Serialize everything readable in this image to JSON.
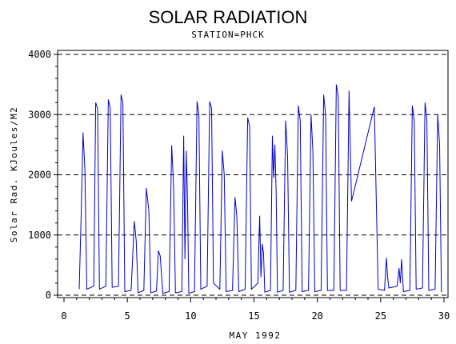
{
  "chart_data": {
    "type": "line",
    "title": "SOLAR RADIATION",
    "subtitle": "STATION=PHCK",
    "xlabel": "MAY 1992",
    "ylabel": "Solar Rad. KJoules/M2",
    "xlim": [
      0,
      30
    ],
    "ylim": [
      0,
      4000
    ],
    "xticks": [
      0,
      5,
      10,
      15,
      20,
      25,
      30
    ],
    "yticks": [
      0,
      1000,
      2000,
      3000,
      4000
    ],
    "grid": "horizontal dashed at y ticks",
    "series": [
      {
        "color": "#0000cc",
        "x": [
          1.2,
          1.35,
          1.5,
          1.65,
          1.8,
          2.35,
          2.5,
          2.65,
          2.8,
          3.3,
          3.5,
          3.65,
          3.8,
          4.3,
          4.5,
          4.65,
          4.8,
          5.3,
          5.55,
          5.7,
          5.85,
          6.3,
          6.5,
          6.7,
          6.85,
          7.3,
          7.45,
          7.6,
          7.8,
          8.3,
          8.5,
          8.65,
          8.8,
          9.3,
          9.45,
          9.55,
          9.65,
          9.75,
          9.85,
          10.3,
          10.5,
          10.65,
          10.8,
          11.3,
          11.5,
          11.65,
          11.8,
          12.3,
          12.5,
          12.65,
          12.8,
          13.3,
          13.5,
          13.65,
          13.8,
          14.3,
          14.5,
          14.65,
          14.8,
          15.3,
          15.45,
          15.55,
          15.65,
          15.75,
          15.85,
          16.3,
          16.45,
          16.55,
          16.65,
          16.75,
          16.85,
          17.3,
          17.5,
          17.65,
          17.8,
          18.3,
          18.5,
          18.65,
          18.8,
          19.3,
          19.5,
          19.65,
          19.8,
          20.3,
          20.5,
          20.65,
          20.8,
          21.3,
          21.5,
          21.65,
          21.8,
          22.3,
          22.5,
          22.7,
          24.5,
          24.8,
          25.3,
          25.45,
          25.55,
          25.65,
          26.3,
          26.45,
          26.55,
          26.65,
          26.8,
          27.3,
          27.5,
          27.65,
          27.8,
          28.3,
          28.5,
          28.65,
          28.8,
          29.3,
          29.5,
          29.65,
          29.8
        ],
        "y": [
          100,
          1300,
          2700,
          2100,
          100,
          150,
          3200,
          3100,
          100,
          150,
          3250,
          3100,
          130,
          150,
          3330,
          3200,
          60,
          80,
          1230,
          900,
          40,
          80,
          1780,
          1400,
          40,
          70,
          740,
          650,
          30,
          60,
          2490,
          1800,
          40,
          60,
          2650,
          600,
          2400,
          1600,
          30,
          60,
          3220,
          3000,
          100,
          150,
          3220,
          3100,
          200,
          100,
          2400,
          2000,
          60,
          80,
          1630,
          1300,
          60,
          100,
          2950,
          2800,
          100,
          200,
          1320,
          300,
          850,
          700,
          50,
          80,
          2650,
          1950,
          2500,
          1700,
          50,
          80,
          2900,
          2300,
          50,
          80,
          3150,
          2900,
          60,
          80,
          3000,
          2400,
          60,
          80,
          3330,
          3000,
          80,
          80,
          3500,
          3300,
          80,
          80,
          3400,
          1560,
          3130,
          100,
          80,
          620,
          300,
          120,
          150,
          450,
          200,
          600,
          60,
          80,
          3150,
          2900,
          100,
          120,
          3200,
          2900,
          80,
          100,
          3000,
          2500,
          50
        ]
      }
    ]
  }
}
